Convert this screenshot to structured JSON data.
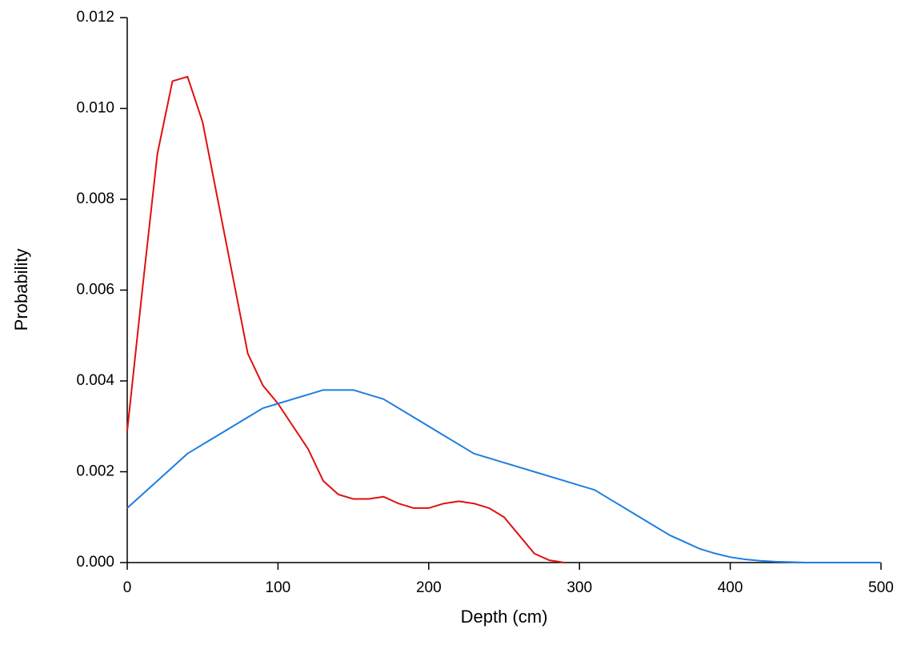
{
  "chart_data": {
    "type": "line",
    "x_label": "Depth (cm)",
    "y_label": "Probability",
    "x": [
      0,
      10,
      20,
      30,
      40,
      50,
      60,
      70,
      80,
      90,
      100,
      110,
      120,
      130,
      140,
      150,
      160,
      170,
      180,
      190,
      200,
      210,
      220,
      230,
      240,
      250,
      260,
      270,
      280,
      290,
      300,
      310,
      320,
      330,
      340,
      350,
      360,
      370,
      380,
      390,
      400,
      410,
      420,
      430,
      440,
      450,
      460,
      470,
      480,
      490,
      500
    ],
    "series": [
      {
        "color": "#e01010",
        "values": [
          0.0029,
          0.006,
          0.009,
          0.0106,
          0.0107,
          0.0097,
          0.008,
          0.0063,
          0.0046,
          0.0039,
          0.0035,
          0.003,
          0.0025,
          0.0018,
          0.0015,
          0.0014,
          0.0014,
          0.00145,
          0.0013,
          0.0012,
          0.0012,
          0.0013,
          0.00135,
          0.0013,
          0.0012,
          0.001,
          0.0006,
          0.0002,
          5e-05,
          0,
          null,
          null,
          null,
          null,
          null,
          null,
          null,
          null,
          null,
          null,
          null,
          null,
          null,
          null,
          null,
          null,
          null,
          null,
          null,
          null,
          null
        ]
      },
      {
        "color": "#1e7ee0",
        "values": [
          0.0012,
          0.0015,
          0.0018,
          0.0021,
          0.0024,
          0.0026,
          0.0028,
          0.003,
          0.0032,
          0.0034,
          0.0035,
          0.0036,
          0.0037,
          0.0038,
          0.0038,
          0.0038,
          0.0037,
          0.0036,
          0.0034,
          0.0032,
          0.003,
          0.0028,
          0.0026,
          0.0024,
          0.0023,
          0.0022,
          0.0021,
          0.002,
          0.0019,
          0.0018,
          0.0017,
          0.0016,
          0.0014,
          0.0012,
          0.001,
          0.0008,
          0.0006,
          0.00045,
          0.0003,
          0.0002,
          0.00012,
          7e-05,
          4e-05,
          2e-05,
          1e-05,
          0,
          0,
          0,
          0,
          0,
          0
        ]
      }
    ],
    "xlim": [
      0,
      500
    ],
    "xticks": [
      0,
      100,
      200,
      300,
      400,
      500
    ],
    "ylim": [
      0,
      0.012
    ],
    "yticks": [
      {
        "value": 0,
        "label": "0.000"
      },
      {
        "value": 0.002,
        "label": "0.002"
      },
      {
        "value": 0.004,
        "label": "0.004"
      },
      {
        "value": 0.006,
        "label": "0.006"
      },
      {
        "value": 0.008,
        "label": "0.008"
      },
      {
        "value": 0.01,
        "label": "0.010"
      },
      {
        "value": 0.012,
        "label": "0.012"
      }
    ]
  }
}
